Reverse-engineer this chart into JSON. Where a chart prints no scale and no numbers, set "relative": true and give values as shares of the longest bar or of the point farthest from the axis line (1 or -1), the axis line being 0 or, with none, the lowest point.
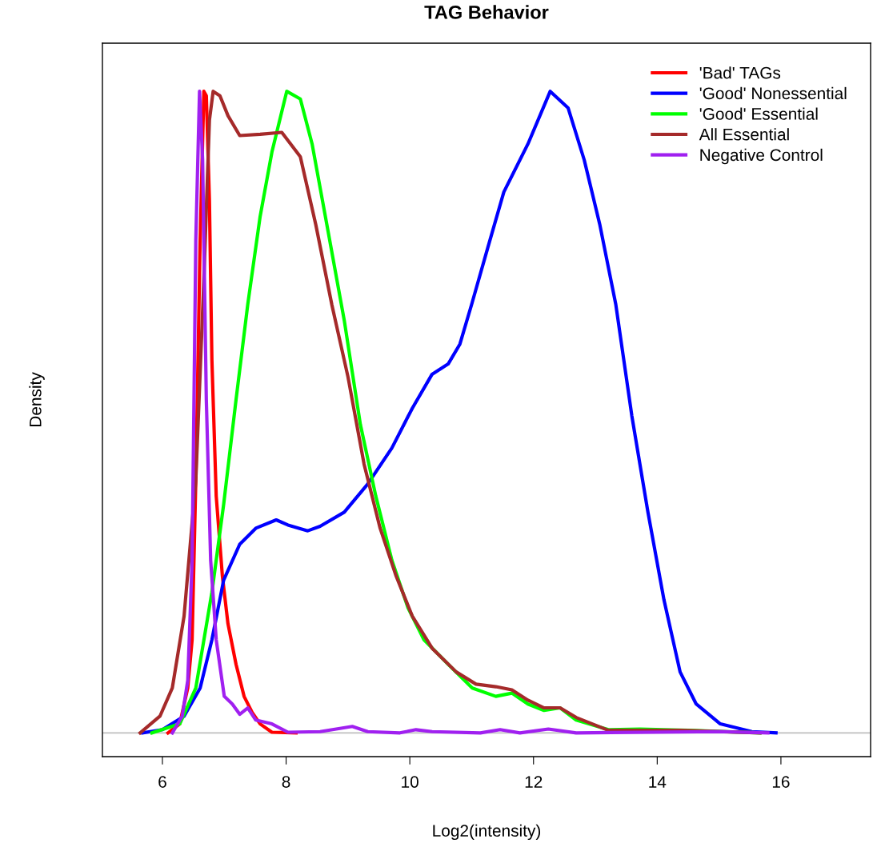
{
  "chart_data": {
    "type": "line",
    "title": "TAG Behavior",
    "xlabel": "Log2(intensity)",
    "ylabel": "Density",
    "relative": true,
    "xlim": [
      5.03,
      17.45
    ],
    "xticks": [
      6,
      8,
      10,
      12,
      14,
      16
    ],
    "grid": false,
    "legend": "top right",
    "tick_labels": "x",
    "line_style": "solid",
    "marker": "none",
    "ref_lines": [
      {
        "axis": "y",
        "value": 0,
        "color": "#bebebe"
      }
    ],
    "series": [
      {
        "name": "'Bad' TAGs",
        "color": "#ff0000",
        "x": [
          6.09,
          6.28,
          6.41,
          6.48,
          6.54,
          6.61,
          6.67,
          6.71,
          6.76,
          6.8,
          6.87,
          6.97,
          7.06,
          7.19,
          7.32,
          7.45,
          7.58,
          7.77,
          8.16
        ],
        "values": [
          0,
          0.014,
          0.07,
          0.145,
          0.394,
          0.768,
          1.0,
          0.993,
          0.83,
          0.581,
          0.369,
          0.244,
          0.17,
          0.107,
          0.057,
          0.032,
          0.014,
          0.001,
          0
        ]
      },
      {
        "name": "'Good' Nonessential",
        "color": "#0000ff",
        "x": [
          5.68,
          6.0,
          6.35,
          6.61,
          6.8,
          6.99,
          7.25,
          7.51,
          7.84,
          8.03,
          8.35,
          8.55,
          8.94,
          9.32,
          9.71,
          10.04,
          10.36,
          10.62,
          10.81,
          11.0,
          11.26,
          11.52,
          11.91,
          12.27,
          12.56,
          12.82,
          13.07,
          13.33,
          13.59,
          13.85,
          14.11,
          14.37,
          14.63,
          15.02,
          15.53,
          15.92
        ],
        "values": [
          0,
          0.005,
          0.026,
          0.07,
          0.145,
          0.238,
          0.294,
          0.319,
          0.332,
          0.324,
          0.315,
          0.322,
          0.344,
          0.388,
          0.444,
          0.506,
          0.559,
          0.575,
          0.606,
          0.668,
          0.756,
          0.843,
          0.918,
          1.0,
          0.974,
          0.893,
          0.793,
          0.668,
          0.494,
          0.344,
          0.207,
          0.095,
          0.045,
          0.014,
          0.002,
          0
        ]
      },
      {
        "name": "'Good' Essential",
        "color": "#00ff00",
        "x": [
          5.83,
          6.28,
          6.54,
          6.8,
          6.99,
          7.19,
          7.38,
          7.58,
          7.77,
          8.01,
          8.23,
          8.42,
          8.68,
          8.94,
          9.2,
          9.45,
          9.71,
          9.97,
          10.23,
          10.62,
          11.01,
          11.39,
          11.65,
          11.91,
          12.17,
          12.43,
          12.69,
          13.21,
          13.72,
          14.5,
          15.66
        ],
        "values": [
          0,
          0.014,
          0.07,
          0.219,
          0.356,
          0.519,
          0.668,
          0.805,
          0.905,
          1.0,
          0.988,
          0.918,
          0.781,
          0.643,
          0.481,
          0.369,
          0.269,
          0.195,
          0.145,
          0.107,
          0.07,
          0.057,
          0.062,
          0.045,
          0.035,
          0.039,
          0.02,
          0.005,
          0.006,
          0.004,
          0
        ]
      },
      {
        "name": "All Essential",
        "color": "#a52a2a",
        "x": [
          5.64,
          5.96,
          6.16,
          6.35,
          6.54,
          6.67,
          6.76,
          6.82,
          6.93,
          7.06,
          7.25,
          7.58,
          7.93,
          8.23,
          8.48,
          8.74,
          9.0,
          9.26,
          9.52,
          9.78,
          10.04,
          10.36,
          10.75,
          11.07,
          11.39,
          11.65,
          11.91,
          12.17,
          12.43,
          12.69,
          13.21,
          14.37,
          15.66
        ],
        "values": [
          0,
          0.026,
          0.07,
          0.182,
          0.394,
          0.706,
          0.955,
          1.0,
          0.993,
          0.962,
          0.931,
          0.933,
          0.936,
          0.898,
          0.792,
          0.667,
          0.555,
          0.419,
          0.319,
          0.244,
          0.182,
          0.132,
          0.095,
          0.076,
          0.072,
          0.067,
          0.051,
          0.039,
          0.039,
          0.024,
          0.004,
          0.004,
          0
        ]
      },
      {
        "name": "Negative Control",
        "color": "#a020f0",
        "x": [
          6.16,
          6.32,
          6.41,
          6.48,
          6.54,
          6.6,
          6.65,
          6.71,
          6.78,
          6.87,
          7.0,
          7.13,
          7.25,
          7.38,
          7.51,
          7.77,
          8.03,
          8.55,
          9.07,
          9.32,
          9.84,
          10.1,
          10.36,
          11.14,
          11.46,
          11.78,
          12.24,
          12.69,
          15.02,
          15.79
        ],
        "values": [
          0,
          0.026,
          0.082,
          0.269,
          0.768,
          1.0,
          0.893,
          0.519,
          0.269,
          0.145,
          0.057,
          0.045,
          0.029,
          0.039,
          0.02,
          0.014,
          0.001,
          0.002,
          0.01,
          0.002,
          0,
          0.005,
          0.002,
          0,
          0.005,
          0,
          0.006,
          0,
          0.002,
          0
        ]
      }
    ]
  }
}
